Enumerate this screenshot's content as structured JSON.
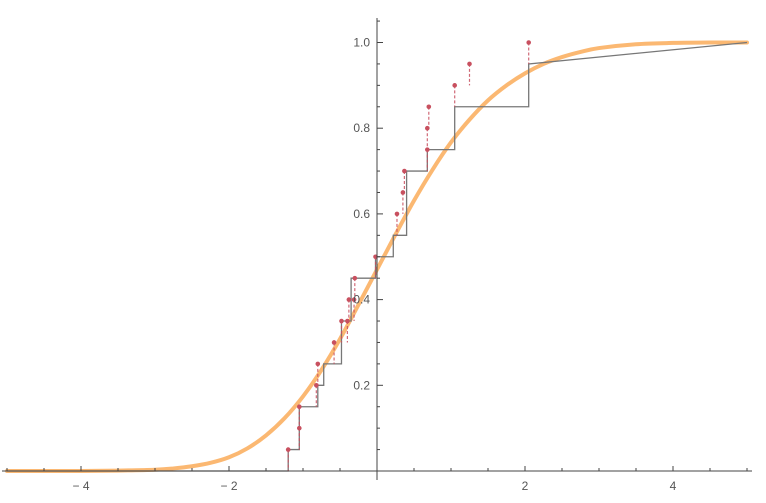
{
  "chart_data": {
    "type": "line",
    "title": "",
    "xlabel": "",
    "ylabel": "",
    "xlim": [
      -5,
      5
    ],
    "ylim": [
      0,
      1.05
    ],
    "x_ticks": [
      {
        "value": -4,
        "label": "− 4"
      },
      {
        "value": -2,
        "label": "− 2"
      },
      {
        "value": 2,
        "label": "2"
      },
      {
        "value": 4,
        "label": "4"
      }
    ],
    "y_ticks": [
      {
        "value": 0.2,
        "label": "0.2"
      },
      {
        "value": 0.4,
        "label": "0.4"
      },
      {
        "value": 0.6,
        "label": "0.6"
      },
      {
        "value": 0.8,
        "label": "0.8"
      },
      {
        "value": 1.0,
        "label": "1.0"
      }
    ],
    "grid": false,
    "series": [
      {
        "kind": "smooth-cdf",
        "color": "#fbb46a",
        "x": [
          -5,
          -4.5,
          -4,
          -3.5,
          -3,
          -2.75,
          -2.5,
          -2.25,
          -2,
          -1.75,
          -1.5,
          -1.25,
          -1,
          -0.75,
          -0.5,
          -0.25,
          0,
          0.25,
          0.5,
          0.75,
          1,
          1.25,
          1.5,
          1.75,
          2,
          2.25,
          2.5,
          2.75,
          3,
          3.5,
          4,
          4.5,
          5
        ],
        "y": [
          0,
          0,
          0,
          0.001,
          0.003,
          0.006,
          0.011,
          0.019,
          0.032,
          0.053,
          0.083,
          0.123,
          0.174,
          0.236,
          0.308,
          0.388,
          0.47,
          0.552,
          0.631,
          0.703,
          0.767,
          0.82,
          0.865,
          0.9,
          0.928,
          0.95,
          0.966,
          0.978,
          0.987,
          0.996,
          0.999,
          1.0,
          1.0
        ]
      },
      {
        "kind": "step-cdf",
        "color": "#777777",
        "x": [
          -5,
          -1.2,
          -1.2,
          -1.05,
          -1.05,
          -0.8,
          -0.8,
          -0.72,
          -0.72,
          -0.48,
          -0.48,
          -0.35,
          -0.35,
          -0.02,
          -0.02,
          0.22,
          0.22,
          0.4,
          0.4,
          0.68,
          0.68,
          1.05,
          1.05,
          2.05,
          2.05,
          5
        ],
        "y": [
          0,
          0,
          0.05,
          0.05,
          0.15,
          0.15,
          0.2,
          0.2,
          0.25,
          0.25,
          0.35,
          0.35,
          0.45,
          0.45,
          0.5,
          0.5,
          0.55,
          0.55,
          0.7,
          0.7,
          0.75,
          0.75,
          0.85,
          0.85,
          0.95,
          1.0
        ]
      },
      {
        "kind": "sample-points",
        "color": "#c8505f",
        "x": [
          -1.2,
          -1.05,
          -1.05,
          -0.82,
          -0.8,
          -0.58,
          -0.48,
          -0.4,
          -0.38,
          -0.31,
          -0.3,
          -0.02,
          0.27,
          0.35,
          0.37,
          0.68,
          0.68,
          0.7,
          1.05,
          1.25,
          2.05
        ],
        "y": [
          0.05,
          0.1,
          0.15,
          0.2,
          0.25,
          0.3,
          0.35,
          0.35,
          0.4,
          0.4,
          0.45,
          0.5,
          0.6,
          0.65,
          0.7,
          0.75,
          0.8,
          0.85,
          0.9,
          0.95,
          1.0
        ]
      }
    ]
  }
}
